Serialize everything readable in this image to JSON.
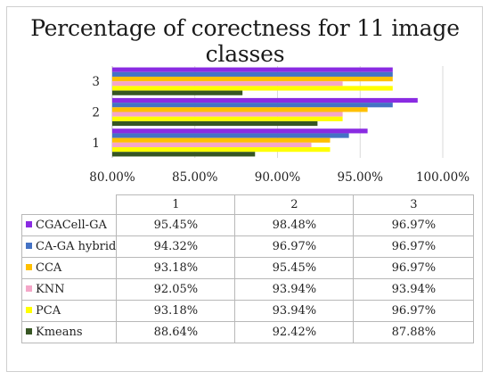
{
  "chart_data": {
    "type": "bar",
    "orientation": "horizontal",
    "title": "Percentage of corectness for 11 image classes",
    "categories": [
      "1",
      "2",
      "3"
    ],
    "xlim": [
      80,
      100
    ],
    "xticks": [
      "80.00%",
      "85.00%",
      "90.00%",
      "95.00%",
      "100.00%"
    ],
    "grid": true,
    "series": [
      {
        "name": "CGACell-GA",
        "color": "#8a2be2",
        "values": [
          95.45,
          98.48,
          96.97
        ],
        "labels": [
          "95.45%",
          "98.48%",
          "96.97%"
        ]
      },
      {
        "name": "CA-GA hybrid",
        "color": "#4472c4",
        "values": [
          94.32,
          96.97,
          96.97
        ],
        "labels": [
          "94.32%",
          "96.97%",
          "96.97%"
        ]
      },
      {
        "name": "CCA",
        "color": "#ffc000",
        "values": [
          93.18,
          95.45,
          96.97
        ],
        "labels": [
          "93.18%",
          "95.45%",
          "96.97%"
        ]
      },
      {
        "name": "KNN",
        "color": "#f4a6c8",
        "values": [
          92.05,
          93.94,
          93.94
        ],
        "labels": [
          "92.05%",
          "93.94%",
          "93.94%"
        ]
      },
      {
        "name": "PCA",
        "color": "#ffff00",
        "values": [
          93.18,
          93.94,
          96.97
        ],
        "labels": [
          "93.18%",
          "93.94%",
          "96.97%"
        ]
      },
      {
        "name": "Kmeans",
        "color": "#375623",
        "values": [
          88.64,
          92.42,
          87.88
        ],
        "labels": [
          "88.64%",
          "92.42%",
          "87.88%"
        ]
      }
    ]
  }
}
